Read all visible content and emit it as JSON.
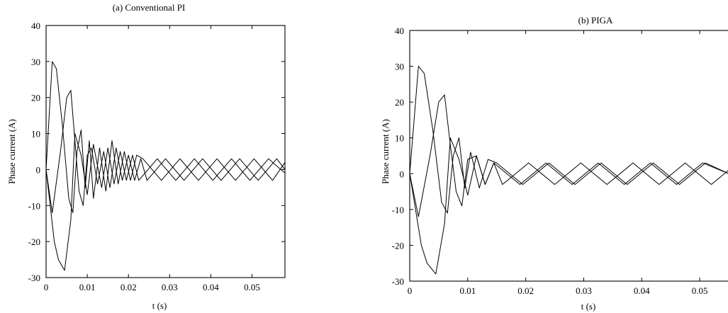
{
  "chart_data": [
    {
      "type": "line",
      "title": "(a) Conventional PI",
      "xlabel": "t (s)",
      "ylabel": "Phase current (A)",
      "xlim": [
        0,
        0.058
      ],
      "ylim": [
        -30,
        40
      ],
      "xticks": [
        0,
        0.01,
        0.02,
        0.03,
        0.04,
        0.05
      ],
      "xtick_labels": [
        "0",
        "0.01",
        "0.02",
        "0.03",
        "0.04",
        "0.05"
      ],
      "yticks": [
        -30,
        -20,
        -10,
        0,
        10,
        20,
        30,
        40
      ],
      "ytick_labels": [
        "-30",
        "-20",
        "-10",
        "0",
        "10",
        "20",
        "30",
        "40"
      ],
      "grid": false,
      "series": [
        {
          "x": [
            0,
            0.0015,
            0.0025,
            0.004,
            0.0055,
            0.0065,
            0.0075,
            0.0085,
            0.0095,
            0.0105,
            0.0115,
            0.013,
            0.0145,
            0.016,
            0.0175,
            0.019,
            0.0205,
            0.022,
            0.0235,
            0.028,
            0.0325,
            0.037,
            0.0415,
            0.046,
            0.0505,
            0.055,
            0.058
          ],
          "y": [
            0,
            30,
            28,
            12,
            -8,
            -12,
            5,
            11,
            -5,
            8,
            -8,
            6,
            -6,
            8,
            -4,
            5,
            -3,
            4,
            3,
            -3,
            3,
            -3,
            3,
            -3,
            3,
            -3,
            2
          ]
        },
        {
          "x": [
            0,
            0.0015,
            0.0035,
            0.005,
            0.006,
            0.007,
            0.008,
            0.009,
            0.01,
            0.011,
            0.0125,
            0.014,
            0.0155,
            0.017,
            0.0185,
            0.02,
            0.0215,
            0.023,
            0.0245,
            0.029,
            0.0335,
            0.038,
            0.0425,
            0.047,
            0.0515,
            0.056,
            0.058
          ],
          "y": [
            0,
            -12,
            5,
            20,
            22,
            8,
            -6,
            -10,
            4,
            6,
            -4,
            5,
            -5,
            6,
            -3,
            4,
            -3,
            3,
            -3,
            3,
            -3,
            3,
            -3,
            3,
            -3,
            3,
            0
          ]
        },
        {
          "x": [
            0,
            0.002,
            0.003,
            0.0045,
            0.006,
            0.007,
            0.0085,
            0.01,
            0.0115,
            0.0135,
            0.015,
            0.0165,
            0.018,
            0.0195,
            0.021,
            0.0225,
            0.027,
            0.0315,
            0.036,
            0.0405,
            0.045,
            0.0495,
            0.054,
            0.058
          ],
          "y": [
            0,
            -20,
            -25,
            -28,
            -14,
            10,
            4,
            -7,
            7,
            -5,
            6,
            -4,
            5,
            -3,
            4,
            -3,
            3,
            -3,
            3,
            -3,
            3,
            -3,
            3,
            -1
          ]
        }
      ]
    },
    {
      "type": "line",
      "title": "(b) PIGA",
      "xlabel": "t (s)",
      "ylabel": "Phase current (A)",
      "xlim": [
        0,
        0.055
      ],
      "ylim": [
        -30,
        40
      ],
      "xticks": [
        0,
        0.01,
        0.02,
        0.03,
        0.04,
        0.05
      ],
      "xtick_labels": [
        "0",
        "0.01",
        "0.02",
        "0.03",
        "0.04",
        "0.05"
      ],
      "yticks": [
        -30,
        -20,
        -10,
        0,
        10,
        20,
        30,
        40
      ],
      "ytick_labels": [
        "-30",
        "-20",
        "-10",
        "0",
        "10",
        "20",
        "30",
        "40"
      ],
      "grid": false,
      "series": [
        {
          "x": [
            0,
            0.0015,
            0.0025,
            0.004,
            0.0055,
            0.0065,
            0.0075,
            0.0085,
            0.0095,
            0.0105,
            0.012,
            0.0135,
            0.015,
            0.0195,
            0.024,
            0.0285,
            0.033,
            0.0375,
            0.042,
            0.0465,
            0.051,
            0.055
          ],
          "y": [
            0,
            30,
            28,
            12,
            -8,
            -11,
            5,
            10,
            -4,
            6,
            -4,
            4,
            3,
            -3,
            3,
            -3,
            3,
            -3,
            3,
            -3,
            3,
            0
          ]
        },
        {
          "x": [
            0,
            0.0015,
            0.0035,
            0.005,
            0.006,
            0.007,
            0.008,
            0.009,
            0.01,
            0.0115,
            0.013,
            0.0145,
            0.016,
            0.0205,
            0.025,
            0.0295,
            0.034,
            0.0385,
            0.043,
            0.0475,
            0.052,
            0.055
          ],
          "y": [
            0,
            -12,
            5,
            20,
            22,
            8,
            -5,
            -9,
            4,
            5,
            -3,
            3,
            -3,
            3,
            -3,
            3,
            -3,
            3,
            -3,
            3,
            -3,
            1
          ]
        },
        {
          "x": [
            0,
            0.002,
            0.003,
            0.0045,
            0.006,
            0.007,
            0.0085,
            0.01,
            0.0115,
            0.013,
            0.0145,
            0.019,
            0.0235,
            0.028,
            0.0325,
            0.037,
            0.0415,
            0.046,
            0.0505,
            0.055
          ],
          "y": [
            0,
            -20,
            -25,
            -28,
            -14,
            10,
            4,
            -6,
            5,
            -3,
            3,
            -3,
            3,
            -3,
            3,
            -3,
            3,
            -3,
            3,
            0
          ]
        }
      ]
    }
  ]
}
